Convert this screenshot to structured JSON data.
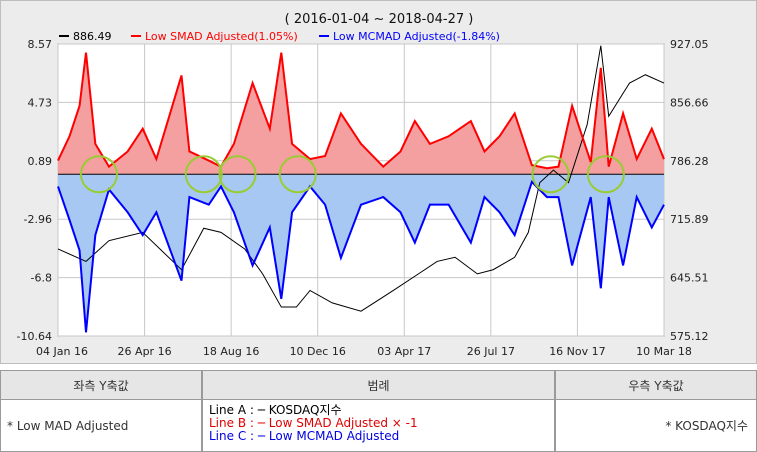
{
  "chart_data": {
    "type": "line",
    "title": "( 2016-01-04 ~ 2018-04-27 )",
    "x_ticks": [
      "04 Jan 16",
      "26 Apr 16",
      "18 Aug 16",
      "10 Dec 16",
      "03 Apr 17",
      "26 Jul 17",
      "16 Nov 17",
      "10 Mar 18"
    ],
    "left_axis": {
      "ticks": [
        "8.57",
        "4.73",
        "0.89",
        "-2.96",
        "-6.8",
        "-10.64"
      ],
      "ylim": [
        -10.64,
        8.57
      ]
    },
    "right_axis": {
      "ticks": [
        "927.05",
        "856.66",
        "786.28",
        "715.89",
        "645.51",
        "575.12"
      ],
      "ylim": [
        575.12,
        927.05
      ]
    },
    "legend": [
      {
        "value": "886.49",
        "label": "",
        "color": "#000000"
      },
      {
        "value": "",
        "label": "Low SMAD Adjusted(1.05%)",
        "color": "#ff0000"
      },
      {
        "value": "",
        "label": "Low MCMAD Adjusted(-1.84%)",
        "color": "#0000ff"
      }
    ],
    "series": [
      {
        "name": "KOSDAQ지수",
        "axis": "right",
        "color": "#000000",
        "x": [
          "2016-01-04",
          "2016-02-12",
          "2016-03-15",
          "2016-05-01",
          "2016-06-24",
          "2016-07-25",
          "2016-08-18",
          "2016-09-20",
          "2016-10-15",
          "2016-11-10",
          "2016-12-01",
          "2016-12-20",
          "2017-01-20",
          "2017-03-01",
          "2017-04-15",
          "2017-05-20",
          "2017-06-15",
          "2017-07-10",
          "2017-08-10",
          "2017-09-01",
          "2017-10-01",
          "2017-10-20",
          "2017-11-05",
          "2017-11-24",
          "2017-12-15",
          "2018-01-10",
          "2018-01-29",
          "2018-02-09",
          "2018-03-10",
          "2018-04-01",
          "2018-04-27"
        ],
        "values": [
          680,
          665,
          690,
          700,
          655,
          705,
          700,
          680,
          650,
          610,
          610,
          630,
          615,
          605,
          630,
          650,
          665,
          670,
          650,
          655,
          670,
          700,
          760,
          775,
          760,
          830,
          925,
          840,
          880,
          890,
          880
        ]
      },
      {
        "name": "Low SMAD Adjusted × -1",
        "axis": "left",
        "color": "#ff0000",
        "x": [
          "2016-01-04",
          "2016-01-20",
          "2016-02-03",
          "2016-02-12",
          "2016-02-25",
          "2016-03-15",
          "2016-04-10",
          "2016-05-01",
          "2016-05-20",
          "2016-06-24",
          "2016-07-05",
          "2016-08-01",
          "2016-08-18",
          "2016-09-05",
          "2016-10-01",
          "2016-10-25",
          "2016-11-10",
          "2016-11-25",
          "2016-12-20",
          "2017-01-10",
          "2017-02-01",
          "2017-03-01",
          "2017-04-01",
          "2017-04-25",
          "2017-05-15",
          "2017-06-05",
          "2017-07-01",
          "2017-08-01",
          "2017-08-20",
          "2017-09-10",
          "2017-10-01",
          "2017-10-25",
          "2017-11-15",
          "2017-12-01",
          "2017-12-20",
          "2018-01-15",
          "2018-01-29",
          "2018-02-09",
          "2018-03-01",
          "2018-03-20",
          "2018-04-10",
          "2018-04-27"
        ],
        "values": [
          0.9,
          2.5,
          4.5,
          8.0,
          2.0,
          0.5,
          1.5,
          3.0,
          1.0,
          6.5,
          1.5,
          0.9,
          0.5,
          2.0,
          6.0,
          3.0,
          8.0,
          2.0,
          1.0,
          1.2,
          4.0,
          2.0,
          0.5,
          1.5,
          3.5,
          2.0,
          2.5,
          3.5,
          1.5,
          2.5,
          4.0,
          0.6,
          0.4,
          0.5,
          4.5,
          0.8,
          7.0,
          0.5,
          4.0,
          1.0,
          3.0,
          1.0
        ]
      },
      {
        "name": "Low MCMAD Adjusted",
        "axis": "left",
        "color": "#0000ff",
        "x": [
          "2016-01-04",
          "2016-01-20",
          "2016-02-03",
          "2016-02-12",
          "2016-02-25",
          "2016-03-15",
          "2016-04-10",
          "2016-05-01",
          "2016-05-20",
          "2016-06-24",
          "2016-07-05",
          "2016-08-01",
          "2016-08-18",
          "2016-09-05",
          "2016-10-01",
          "2016-10-25",
          "2016-11-10",
          "2016-11-25",
          "2016-12-20",
          "2017-01-10",
          "2017-02-01",
          "2017-03-01",
          "2017-04-01",
          "2017-04-25",
          "2017-05-15",
          "2017-06-05",
          "2017-07-01",
          "2017-08-01",
          "2017-08-20",
          "2017-09-10",
          "2017-10-01",
          "2017-10-25",
          "2017-11-15",
          "2017-12-01",
          "2017-12-20",
          "2018-01-15",
          "2018-01-29",
          "2018-02-09",
          "2018-03-01",
          "2018-03-20",
          "2018-04-10",
          "2018-04-27"
        ],
        "values": [
          -0.8,
          -3.0,
          -5.0,
          -10.4,
          -4.0,
          -1.0,
          -2.5,
          -4.0,
          -2.5,
          -7.0,
          -1.5,
          -2.0,
          -0.8,
          -2.5,
          -6.0,
          -3.5,
          -8.2,
          -2.5,
          -0.8,
          -2.0,
          -5.5,
          -2.0,
          -1.5,
          -2.5,
          -4.5,
          -2.0,
          -2.0,
          -4.5,
          -1.5,
          -2.5,
          -4.0,
          -0.5,
          -1.5,
          -1.5,
          -6.0,
          -1.5,
          -7.5,
          -1.5,
          -6.0,
          -1.5,
          -3.5,
          -2.0
        ]
      }
    ],
    "highlight_marker_dates": [
      "2016-03-01",
      "2016-07-25",
      "2016-09-10",
      "2016-12-03",
      "2017-11-20",
      "2018-02-05"
    ],
    "grid": true,
    "fill": true
  },
  "table": {
    "left_header": "좌측 Y축값",
    "left_value": "* Low MAD Adjusted",
    "legend_header": "범례",
    "legend_lines": [
      {
        "text": "Line A : ─ KOSDAQ지수",
        "color": "#000000"
      },
      {
        "text": "Line B : ─ Low SMAD Adjusted × -1",
        "color": "#e00000"
      },
      {
        "text": "Line C : ─ Low MCMAD Adjusted",
        "color": "#0000e0"
      }
    ],
    "right_header": "우측 Y축값",
    "right_value": "* KOSDAQ지수"
  }
}
